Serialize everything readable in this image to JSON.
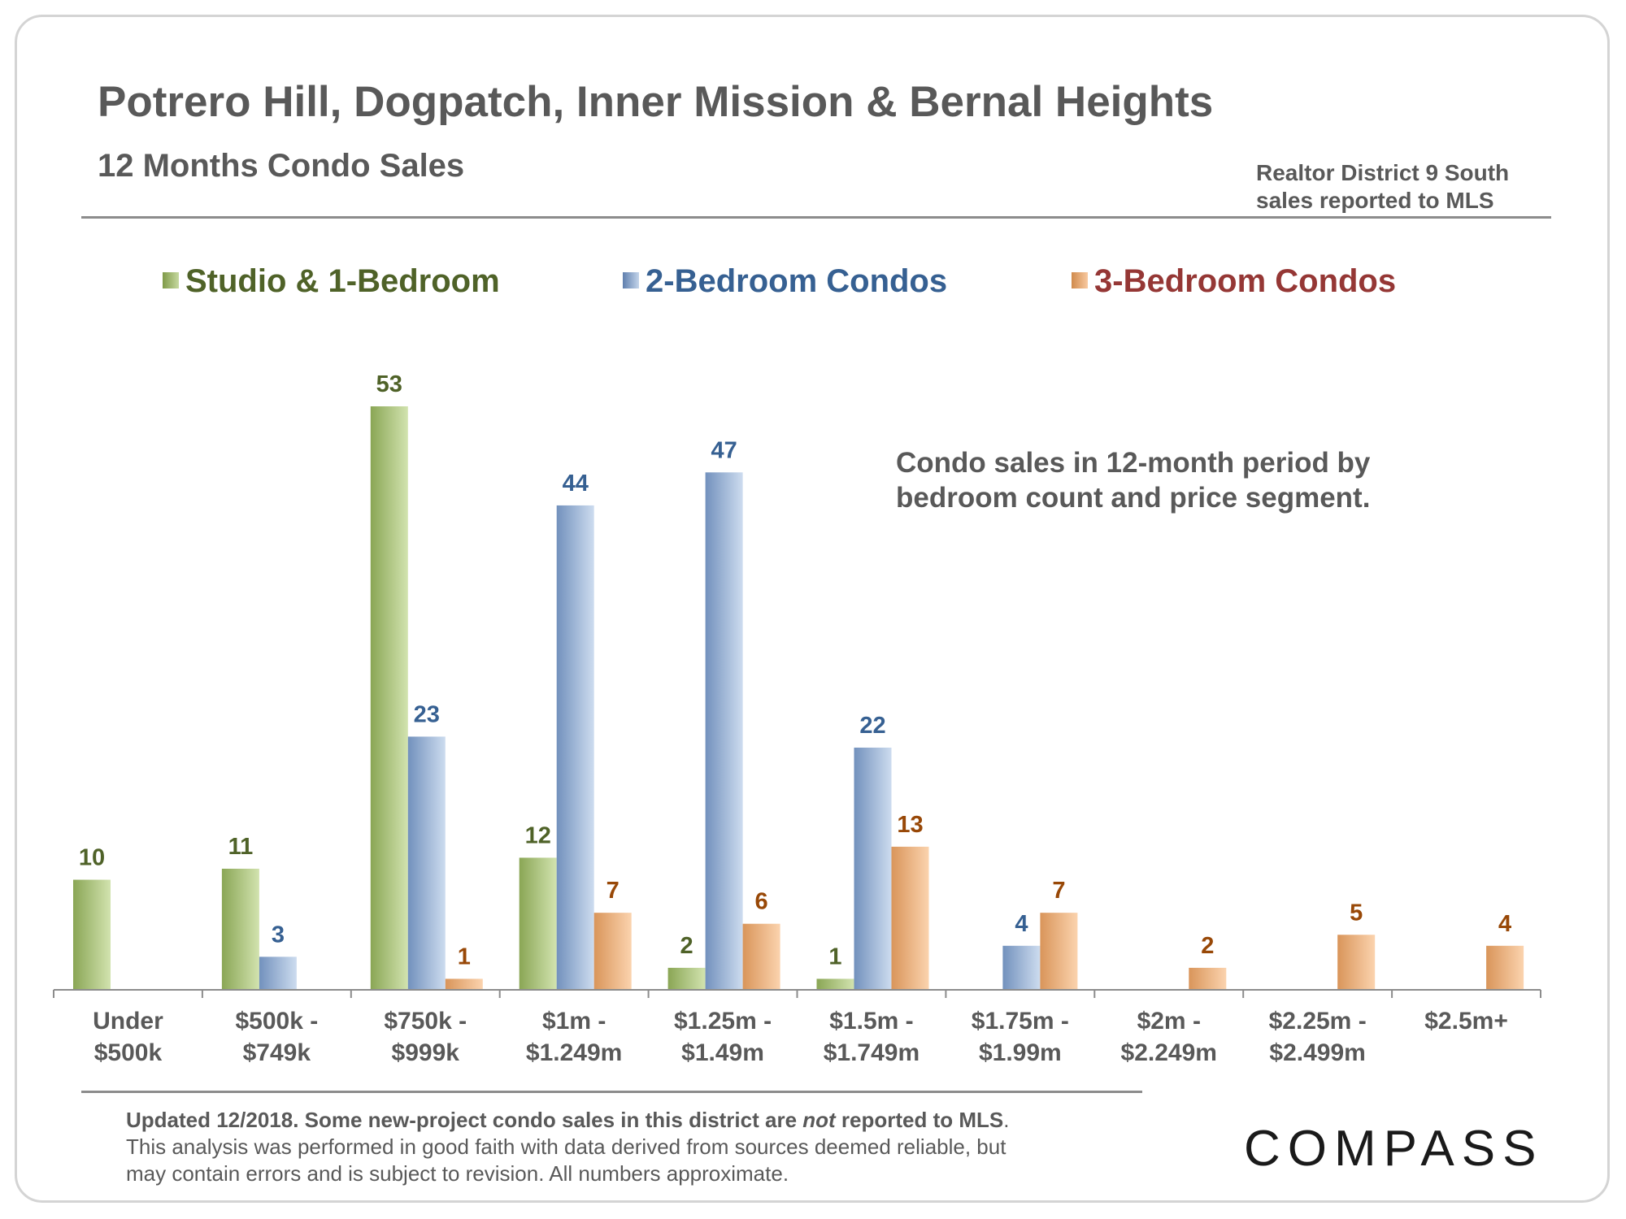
{
  "header": {
    "title": "Potrero Hill, Dogpatch, Inner Mission & Bernal Heights",
    "subtitle": "12 Months Condo Sales",
    "district_line1": "Realtor District 9 South",
    "district_line2": "sales reported to MLS"
  },
  "annotation": {
    "line1": "Condo sales in 12-month period by",
    "line2": "bedroom count and price segment."
  },
  "footer": {
    "lead_before": "Updated 12/2018. Some new-project condo sales in this district are ",
    "lead_emph": "not",
    "lead_after": " reported to MLS",
    "period": ".",
    "line2": "This analysis was performed in good faith with data derived from sources deemed reliable, but",
    "line3": "may contain errors and is subject to revision. All numbers approximate."
  },
  "logo": {
    "text": "COMPASS"
  },
  "colors": {
    "studio": "#4f6228",
    "two_bed": "#366092",
    "three_bed": "#953735",
    "three_bed_label": "#984807",
    "text_gray": "#595959"
  },
  "chart_data": {
    "type": "bar",
    "title": "12 Months Condo Sales",
    "xlabel": "",
    "ylabel": "",
    "ylim": [
      0,
      53
    ],
    "grid": false,
    "legend_position": "top",
    "categories": [
      [
        "Under",
        "$500k"
      ],
      [
        "$500k -",
        "$749k"
      ],
      [
        "$750k -",
        "$999k"
      ],
      [
        "$1m -",
        "$1.249m"
      ],
      [
        "$1.25m -",
        "$1.49m"
      ],
      [
        "$1.5m -",
        "$1.749m"
      ],
      [
        "$1.75m -",
        "$1.99m"
      ],
      [
        "$2m -",
        "$2.249m"
      ],
      [
        "$2.25m -",
        "$2.499m"
      ],
      [
        "$2.5m+"
      ]
    ],
    "series": [
      {
        "name": "Studio & 1-Bedroom",
        "values": [
          10,
          11,
          53,
          12,
          2,
          1,
          null,
          null,
          null,
          null
        ]
      },
      {
        "name": "2-Bedroom Condos",
        "values": [
          null,
          3,
          23,
          44,
          47,
          22,
          4,
          null,
          null,
          null
        ]
      },
      {
        "name": "3-Bedroom Condos",
        "values": [
          null,
          null,
          1,
          7,
          6,
          13,
          7,
          2,
          5,
          4
        ]
      }
    ]
  }
}
